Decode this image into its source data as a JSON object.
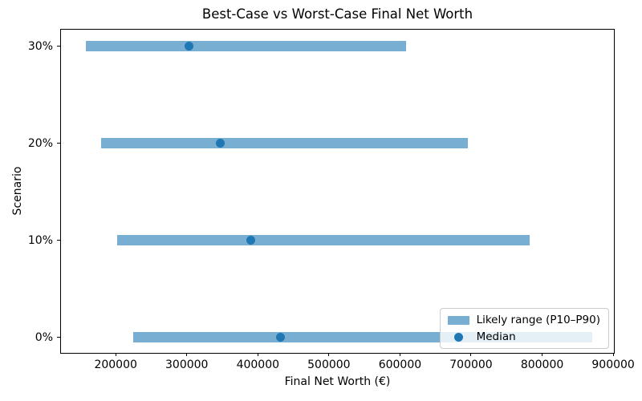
{
  "chart_data": {
    "type": "bar",
    "orientation": "horizontal",
    "title": "Best-Case vs Worst-Case Final Net Worth",
    "xlabel": "Final Net Worth (€)",
    "ylabel": "Scenario",
    "categories": [
      "0%",
      "10%",
      "20%",
      "30%"
    ],
    "series": [
      {
        "scenario": "0%",
        "y": 0,
        "p10": 225000,
        "median": 432000,
        "p90": 870000
      },
      {
        "scenario": "10%",
        "y": 1,
        "p10": 202000,
        "median": 390000,
        "p90": 783000
      },
      {
        "scenario": "20%",
        "y": 2,
        "p10": 180000,
        "median": 347000,
        "p90": 695000
      },
      {
        "scenario": "30%",
        "y": 3,
        "p10": 158000,
        "median": 303000,
        "p90": 609000
      }
    ],
    "x_ticks": [
      200000,
      300000,
      400000,
      500000,
      600000,
      700000,
      800000,
      900000
    ],
    "xlim": [
      123000,
      901000
    ],
    "ylim": [
      -0.16,
      3.17
    ],
    "grid": false,
    "legend": {
      "position": "lower right",
      "entries": [
        {
          "label": "Likely range (P10–P90)",
          "marker": "bar"
        },
        {
          "label": "Median",
          "marker": "dot"
        }
      ]
    },
    "colors": {
      "bar": "#79aed3",
      "median_dot": "#1f77b4",
      "text": "#000000",
      "spine": "#000000",
      "legend_border": "#cccccc",
      "background": "#ffffff"
    }
  }
}
